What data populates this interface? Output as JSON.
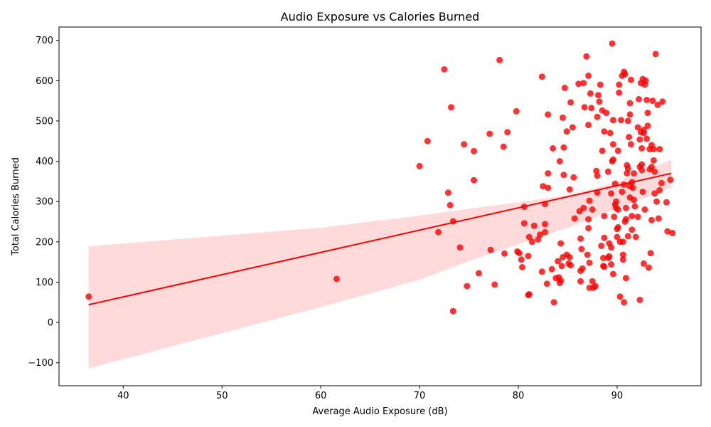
{
  "chart_data": {
    "type": "scatter",
    "title": "Audio Exposure vs Calories Burned",
    "xlabel": "Average Audio Exposure (dB)",
    "ylabel": "Total Calories Burned",
    "xlim": [
      33.5,
      98.5
    ],
    "ylim": [
      -157,
      733
    ],
    "x_ticks": [
      40,
      50,
      60,
      70,
      80,
      90
    ],
    "y_ticks": [
      -100,
      0,
      100,
      200,
      300,
      400,
      500,
      600,
      700
    ],
    "grid": false,
    "point_color": "#ff0000",
    "regression": {
      "x_range": [
        36.5,
        95.5
      ],
      "start_y": 44,
      "end_y": 370,
      "color": "#ff0000",
      "band_color": "#ffd6d6",
      "band_upper": [
        [
          36.5,
          189
        ],
        [
          60,
          235
        ],
        [
          70,
          265
        ],
        [
          75,
          282
        ],
        [
          80,
          298
        ],
        [
          85,
          316
        ],
        [
          90,
          348
        ],
        [
          95.5,
          404
        ]
      ],
      "band_lower": [
        [
          36.5,
          -114
        ],
        [
          60,
          38
        ],
        [
          70,
          106
        ],
        [
          75,
          152
        ],
        [
          80,
          194
        ],
        [
          85,
          235
        ],
        [
          90,
          282
        ],
        [
          95.5,
          335
        ]
      ]
    },
    "points": [
      [
        36.5,
        64
      ],
      [
        61.6,
        108
      ],
      [
        70,
        388
      ],
      [
        70.8,
        450
      ],
      [
        71.9,
        224
      ],
      [
        72.5,
        628
      ],
      [
        72.9,
        322
      ],
      [
        73.1,
        291
      ],
      [
        73.2,
        534
      ],
      [
        73.4,
        251
      ],
      [
        73.4,
        28
      ],
      [
        74.1,
        186
      ],
      [
        74.5,
        442
      ],
      [
        74.8,
        90
      ],
      [
        75.5,
        425
      ],
      [
        75.5,
        353
      ],
      [
        76,
        122
      ],
      [
        77.1,
        468
      ],
      [
        77.2,
        180
      ],
      [
        77.6,
        94
      ],
      [
        78.1,
        651
      ],
      [
        78.5,
        436
      ],
      [
        78.6,
        171
      ],
      [
        78.9,
        472
      ],
      [
        79.8,
        524
      ],
      [
        79.9,
        176
      ],
      [
        80.1,
        172
      ],
      [
        80.3,
        156
      ],
      [
        80.4,
        137
      ],
      [
        80.6,
        287
      ],
      [
        80.6,
        246
      ],
      [
        81,
        165
      ],
      [
        81,
        68
      ],
      [
        81.1,
        70
      ],
      [
        81.1,
        212
      ],
      [
        81.4,
        200
      ],
      [
        81.6,
        240
      ],
      [
        82,
        206
      ],
      [
        82.2,
        218
      ],
      [
        82.4,
        126
      ],
      [
        82.4,
        610
      ],
      [
        82.5,
        338
      ],
      [
        82.7,
        224
      ],
      [
        82.7,
        244
      ],
      [
        82.7,
        294
      ],
      [
        82.9,
        96
      ],
      [
        83,
        334
      ],
      [
        83,
        370
      ],
      [
        83,
        516
      ],
      [
        83.4,
        132
      ],
      [
        83.5,
        432
      ],
      [
        83.6,
        50
      ],
      [
        83.8,
        110
      ],
      [
        84,
        152
      ],
      [
        84.1,
        112
      ],
      [
        84.2,
        98
      ],
      [
        84.2,
        400
      ],
      [
        84.3,
        104
      ],
      [
        84.3,
        196
      ],
      [
        84.4,
        140
      ],
      [
        84.5,
        162
      ],
      [
        84.5,
        508
      ],
      [
        84.6,
        366
      ],
      [
        84.6,
        434
      ],
      [
        84.7,
        582
      ],
      [
        84.9,
        168
      ],
      [
        84.9,
        474
      ],
      [
        85.1,
        146
      ],
      [
        85.2,
        162
      ],
      [
        85.2,
        330
      ],
      [
        85.3,
        142
      ],
      [
        85.3,
        546
      ],
      [
        85.5,
        484
      ],
      [
        85.6,
        360
      ],
      [
        85.7,
        258
      ],
      [
        86.1,
        592
      ],
      [
        86.2,
        276
      ],
      [
        86.3,
        102
      ],
      [
        86.3,
        128
      ],
      [
        86.3,
        208
      ],
      [
        86.4,
        182
      ],
      [
        86.5,
        134
      ],
      [
        86.6,
        594
      ],
      [
        86.6,
        284
      ],
      [
        86.7,
        534
      ],
      [
        86.9,
        660
      ],
      [
        87,
        168
      ],
      [
        87.1,
        234
      ],
      [
        87.1,
        256
      ],
      [
        87.1,
        490
      ],
      [
        87.1,
        612
      ],
      [
        87.2,
        302
      ],
      [
        87.2,
        148
      ],
      [
        87.2,
        86
      ],
      [
        87.3,
        568
      ],
      [
        87.4,
        532
      ],
      [
        87.5,
        102
      ],
      [
        87.5,
        280
      ],
      [
        87.6,
        86
      ],
      [
        87.8,
        90
      ],
      [
        87.9,
        376
      ],
      [
        88,
        364
      ],
      [
        88,
        322
      ],
      [
        88,
        510
      ],
      [
        88.1,
        564
      ],
      [
        88.2,
        548
      ],
      [
        88.3,
        590
      ],
      [
        88.4,
        190
      ],
      [
        88.5,
        426
      ],
      [
        88.5,
        526
      ],
      [
        88.6,
        160
      ],
      [
        88.6,
        140
      ],
      [
        88.7,
        264
      ],
      [
        88.7,
        210
      ],
      [
        88.7,
        138
      ],
      [
        88.7,
        474
      ],
      [
        88.9,
        520
      ],
      [
        89.1,
        374
      ],
      [
        89.1,
        160
      ],
      [
        89.2,
        196
      ],
      [
        89.2,
        164
      ],
      [
        89.3,
        470
      ],
      [
        89.4,
        144
      ],
      [
        89.4,
        320
      ],
      [
        89.4,
        186
      ],
      [
        89.5,
        400
      ],
      [
        89.5,
        692
      ],
      [
        89.6,
        502
      ],
      [
        89.6,
        404
      ],
      [
        89.6,
        442
      ],
      [
        89.6,
        120
      ],
      [
        89.7,
        262
      ],
      [
        89.8,
        344
      ],
      [
        89.8,
        292
      ],
      [
        89.9,
        300
      ],
      [
        89.9,
        284
      ],
      [
        90,
        212
      ],
      [
        90,
        232
      ],
      [
        90.1,
        280
      ],
      [
        90.1,
        236
      ],
      [
        90.1,
        426
      ],
      [
        90.2,
        570
      ],
      [
        90.2,
        590
      ],
      [
        90.3,
        200
      ],
      [
        90.3,
        64
      ],
      [
        90.4,
        502
      ],
      [
        90.5,
        324
      ],
      [
        90.5,
        612
      ],
      [
        90.6,
        200
      ],
      [
        90.6,
        156
      ],
      [
        90.6,
        168
      ],
      [
        90.7,
        50
      ],
      [
        90.7,
        622
      ],
      [
        90.7,
        342
      ],
      [
        90.8,
        616
      ],
      [
        90.8,
        250
      ],
      [
        90.9,
        284
      ],
      [
        90.9,
        110
      ],
      [
        90.9,
        256
      ],
      [
        91,
        370
      ],
      [
        91,
        390
      ],
      [
        91.1,
        382
      ],
      [
        91.1,
        214
      ],
      [
        91.1,
        500
      ],
      [
        91.2,
        460
      ],
      [
        91.3,
        338
      ],
      [
        91.3,
        310
      ],
      [
        91.3,
        516
      ],
      [
        91.3,
        544
      ],
      [
        91.4,
        602
      ],
      [
        91.4,
        442
      ],
      [
        91.5,
        230
      ],
      [
        91.5,
        264
      ],
      [
        91.5,
        348
      ],
      [
        91.6,
        334
      ],
      [
        91.7,
        370
      ],
      [
        91.7,
        304
      ],
      [
        91.8,
        288
      ],
      [
        91.9,
        212
      ],
      [
        92.1,
        484
      ],
      [
        92.1,
        262
      ],
      [
        92.2,
        554
      ],
      [
        92.3,
        386
      ],
      [
        92.3,
        454
      ],
      [
        92.3,
        56
      ],
      [
        92.4,
        472
      ],
      [
        92.4,
        594
      ],
      [
        92.5,
        378
      ],
      [
        92.5,
        392
      ],
      [
        92.5,
        432
      ],
      [
        92.6,
        604
      ],
      [
        92.6,
        324
      ],
      [
        92.7,
        146
      ],
      [
        92.7,
        470
      ],
      [
        92.7,
        478
      ],
      [
        92.8,
        280
      ],
      [
        92.8,
        590
      ],
      [
        92.9,
        600
      ],
      [
        93,
        456
      ],
      [
        93,
        552
      ],
      [
        93.1,
        488
      ],
      [
        93.1,
        520
      ],
      [
        93.2,
        136
      ],
      [
        93.3,
        430
      ],
      [
        93.3,
        380
      ],
      [
        93.4,
        172
      ],
      [
        93.5,
        254
      ],
      [
        93.5,
        386
      ],
      [
        93.5,
        440
      ],
      [
        93.6,
        550
      ],
      [
        93.7,
        402
      ],
      [
        93.7,
        430
      ],
      [
        93.8,
        374
      ],
      [
        93.8,
        320
      ],
      [
        93.9,
        666
      ],
      [
        94,
        300
      ],
      [
        94.1,
        540
      ],
      [
        94.2,
        258
      ],
      [
        94.3,
        328
      ],
      [
        94.3,
        430
      ],
      [
        94.5,
        346
      ],
      [
        94.6,
        548
      ],
      [
        95,
        298
      ],
      [
        95.1,
        226
      ],
      [
        95.4,
        354
      ],
      [
        95.6,
        222
      ]
    ]
  }
}
